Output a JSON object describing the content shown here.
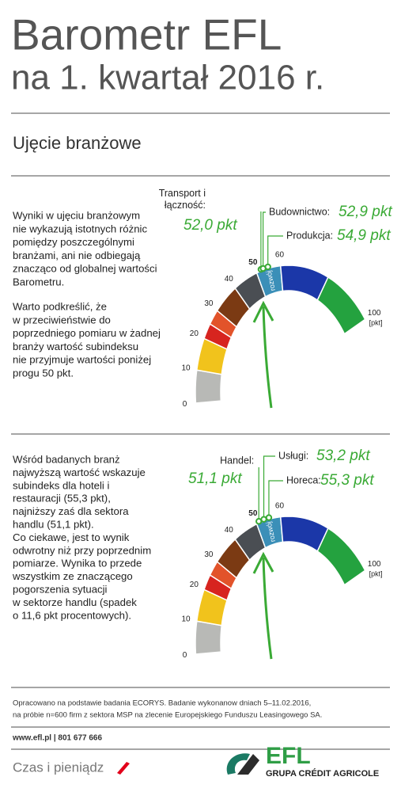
{
  "header": {
    "title": "Barometr EFL",
    "subtitle": "na 1. kwartał 2016 r."
  },
  "section_title": "Ujęcie branżowe",
  "sections": [
    {
      "paragraphs": [
        [
          "Wyniki w ujęciu branżowym",
          "nie wykazują istotnych różnic",
          "pomiędzy poszczególnymi",
          "branżami, ani nie odbiegają",
          "znacząco od globalnej wartości",
          "Barometru."
        ],
        [
          "Warto podkreślić, że",
          "w przeciwieństwie do",
          "poprzedniego pomiaru w żadnej",
          "branży wartość subindeksu",
          "nie przyjmuje wartości poniżej",
          "progu 50 pkt."
        ]
      ]
    },
    {
      "paragraphs": [
        [
          "Wśród badanych branż",
          "najwyższą wartość wskazuje",
          "subindeks dla hoteli i",
          "restauracji (55,3 pkt),",
          "najniższy zaś dla sektora",
          "handlu (51,1 pkt).",
          "Co ciekawe, jest to wynik",
          "odwrotny niż przy poprzednim",
          "pomiarze. Wynika to przede",
          "wszystkim ze znaczącego",
          "pogorszenia sytuacji",
          "w sektorze handlu (spadek",
          "o 11,6 pkt procentowych)."
        ]
      ]
    }
  ],
  "chart_data": [
    {
      "type": "gauge",
      "xlim": [
        0,
        100
      ],
      "xticks": [
        0,
        10,
        20,
        30,
        40,
        50,
        60,
        100
      ],
      "unit": "[pkt]",
      "bands": [
        {
          "from": 0,
          "to": 10,
          "color": "#b8b9b6"
        },
        {
          "from": 10,
          "to": 20,
          "color": "#f1c31c"
        },
        {
          "from": 20,
          "to": 25,
          "color": "#d7241f"
        },
        {
          "from": 25,
          "to": 30,
          "color": "#e2532a"
        },
        {
          "from": 30,
          "to": 40,
          "color": "#7b3a13"
        },
        {
          "from": 40,
          "to": 50,
          "color": "#4a4e53"
        },
        {
          "from": 50,
          "to": 60,
          "color": "#3b8fb8",
          "label": "rozwój"
        },
        {
          "from": 60,
          "to": 80,
          "color": "#1b37a8"
        },
        {
          "from": 80,
          "to": 100,
          "color": "#24a23f"
        }
      ],
      "series": [
        {
          "name": "Transport i łączność:",
          "color": "#3aaa35",
          "values": [
            52.0
          ],
          "value_labels": [
            "52,0 pkt"
          ]
        },
        {
          "name": "Budownictwo:",
          "color": "#3aaa35",
          "values": [
            52.9
          ],
          "value_labels": [
            "52,9 pkt"
          ]
        },
        {
          "name": "Produkcja:",
          "color": "#3aaa35",
          "values": [
            54.9
          ],
          "value_labels": [
            "54,9 pkt"
          ]
        }
      ]
    },
    {
      "type": "gauge",
      "xlim": [
        0,
        100
      ],
      "xticks": [
        0,
        10,
        20,
        30,
        40,
        50,
        60,
        100
      ],
      "unit": "[pkt]",
      "bands": [
        {
          "from": 0,
          "to": 10,
          "color": "#b8b9b6"
        },
        {
          "from": 10,
          "to": 20,
          "color": "#f1c31c"
        },
        {
          "from": 20,
          "to": 25,
          "color": "#d7241f"
        },
        {
          "from": 25,
          "to": 30,
          "color": "#e2532a"
        },
        {
          "from": 30,
          "to": 40,
          "color": "#7b3a13"
        },
        {
          "from": 40,
          "to": 50,
          "color": "#4a4e53"
        },
        {
          "from": 50,
          "to": 60,
          "color": "#3b8fb8",
          "label": "rozwój"
        },
        {
          "from": 60,
          "to": 80,
          "color": "#1b37a8"
        },
        {
          "from": 80,
          "to": 100,
          "color": "#24a23f"
        }
      ],
      "series": [
        {
          "name": "Handel:",
          "color": "#3aaa35",
          "values": [
            51.1
          ],
          "value_labels": [
            "51,1 pkt"
          ]
        },
        {
          "name": "Usługi:",
          "color": "#3aaa35",
          "values": [
            53.2
          ],
          "value_labels": [
            "53,2 pkt"
          ]
        },
        {
          "name": "Horeca:",
          "color": "#3aaa35",
          "values": [
            55.3
          ],
          "value_labels": [
            "55,3 pkt"
          ]
        }
      ]
    }
  ],
  "footer": {
    "note": [
      "Opracowano na podstawie badania ECORYS. Badanie wykonanow dniach 5–11.02.2016,",
      "na próbie n=600 firm z sektora MSP na zlecenie Europejskiego Funduszu Leasingowego SA."
    ],
    "contact": "www.efl.pl | 801 677 666",
    "slogan": "Czas i pieniądz",
    "logo": "EFL",
    "logo_sub": "GRUPA CRÉDIT AGRICOLE"
  }
}
